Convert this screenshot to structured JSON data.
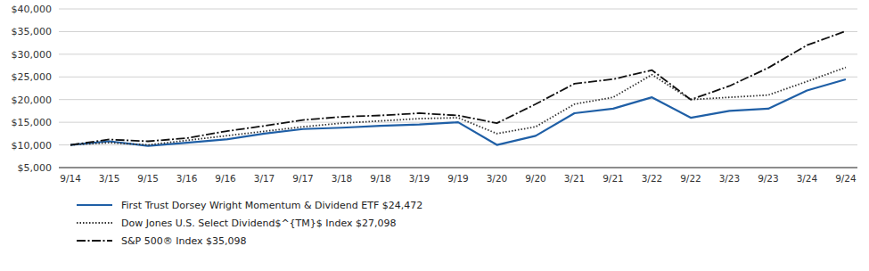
{
  "chart_data": {
    "type": "line",
    "categories": [
      "9/14",
      "3/15",
      "9/15",
      "3/16",
      "9/16",
      "3/17",
      "9/17",
      "3/18",
      "9/18",
      "3/19",
      "9/19",
      "3/20",
      "9/20",
      "3/21",
      "9/21",
      "3/22",
      "9/22",
      "3/23",
      "9/23",
      "3/24",
      "9/24"
    ],
    "series": [
      {
        "name": "First Trust Dorsey Wright Momentum & Dividend ETF $24,472",
        "color": "#1f5fa6",
        "line_style": "solid",
        "values": [
          10000,
          10800,
          9800,
          10500,
          11200,
          12500,
          13500,
          13800,
          14200,
          14500,
          15000,
          10000,
          12000,
          17000,
          18000,
          20500,
          16000,
          17500,
          18000,
          22000,
          24472
        ]
      },
      {
        "name": "Dow Jones U.S. Select Dividend$^{TM}$ Index $27,098",
        "color": "#333333",
        "line_style": "dotted",
        "values": [
          10000,
          10500,
          10000,
          11000,
          12000,
          13000,
          14000,
          14800,
          15300,
          15800,
          16000,
          12500,
          14000,
          19000,
          20500,
          25500,
          20000,
          20500,
          21000,
          24000,
          27098
        ]
      },
      {
        "name": "S&P 500® Index $35,098",
        "color": "#111111",
        "line_style": "dashdot",
        "values": [
          10000,
          11200,
          10800,
          11500,
          13000,
          14200,
          15500,
          16200,
          16500,
          17000,
          16500,
          14800,
          19000,
          23500,
          24500,
          26500,
          20000,
          23000,
          27000,
          32000,
          35098
        ]
      }
    ],
    "ylim": [
      5000,
      40000
    ],
    "yticks": [
      {
        "value": 5000,
        "label": "$5,000"
      },
      {
        "value": 10000,
        "label": "$10,000"
      },
      {
        "value": 15000,
        "label": "$15,000"
      },
      {
        "value": 20000,
        "label": "$20,000"
      },
      {
        "value": 25000,
        "label": "$25,000"
      },
      {
        "value": 30000,
        "label": "$30,000"
      },
      {
        "value": 35000,
        "label": "$35,000"
      },
      {
        "value": 40000,
        "label": "$40,000"
      }
    ],
    "grid": true,
    "legend": "bottom"
  }
}
